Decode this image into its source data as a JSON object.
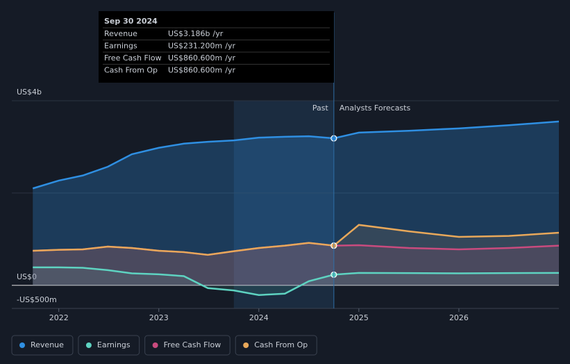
{
  "chart_data": {
    "type": "line",
    "x": [
      2021.74,
      2022.0,
      2022.24,
      2022.49,
      2022.73,
      2023.0,
      2023.25,
      2023.49,
      2023.75,
      2024.0,
      2024.26,
      2024.5,
      2024.75,
      2025.0,
      2025.5,
      2026.0,
      2026.5,
      2027.0
    ],
    "series": [
      {
        "name": "Revenue",
        "color": "#2f8fe2",
        "values": [
          2.1,
          2.27,
          2.38,
          2.57,
          2.84,
          2.98,
          3.07,
          3.11,
          3.14,
          3.2,
          3.22,
          3.23,
          3.186,
          3.31,
          3.35,
          3.4,
          3.47,
          3.55
        ]
      },
      {
        "name": "Earnings",
        "color": "#5ed3c1",
        "values": [
          0.39,
          0.39,
          0.38,
          0.33,
          0.26,
          0.24,
          0.2,
          -0.06,
          -0.11,
          -0.21,
          -0.18,
          0.09,
          0.2312,
          0.27,
          0.265,
          0.26,
          0.265,
          0.27
        ]
      },
      {
        "name": "Free Cash Flow",
        "color": "#c94b7e",
        "values": [
          0.75,
          0.77,
          0.78,
          0.84,
          0.81,
          0.75,
          0.72,
          0.66,
          0.74,
          0.81,
          0.86,
          0.92,
          0.8606,
          0.87,
          0.81,
          0.78,
          0.81,
          0.86
        ]
      },
      {
        "name": "Cash From Op",
        "color": "#e8a85a",
        "values": [
          0.75,
          0.77,
          0.78,
          0.84,
          0.81,
          0.75,
          0.72,
          0.66,
          0.74,
          0.81,
          0.86,
          0.92,
          0.8606,
          1.31,
          1.17,
          1.05,
          1.07,
          1.14
        ]
      }
    ],
    "xlim": [
      2021.53,
      2027.0
    ],
    "xticks": [
      2022,
      2023,
      2024,
      2025,
      2026
    ],
    "ylim": [
      -0.5,
      4
    ],
    "yticks": [
      {
        "value": 4,
        "label": "US$4b"
      },
      {
        "value": 0,
        "label": "US$0"
      },
      {
        "value": -0.5,
        "label": "-US$500m"
      }
    ],
    "past_label": "Past",
    "forecast_label": "Analysts Forecasts",
    "tooltip": {
      "date": "Sep 30 2024",
      "rows": [
        {
          "label": "Revenue",
          "value": "US$3.186b",
          "unit": "/yr"
        },
        {
          "label": "Earnings",
          "value": "US$231.200m",
          "unit": "/yr"
        },
        {
          "label": "Free Cash Flow",
          "value": "US$860.600m",
          "unit": "/yr"
        },
        {
          "label": "Cash From Op",
          "value": "US$860.600m",
          "unit": "/yr"
        }
      ]
    }
  }
}
